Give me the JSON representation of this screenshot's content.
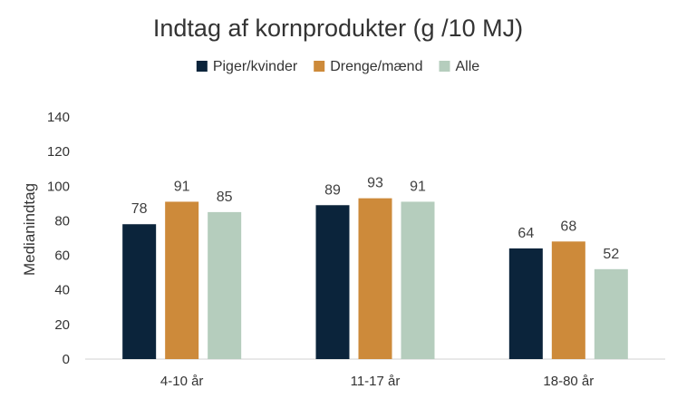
{
  "chart_data": {
    "type": "bar",
    "title": "Indtag af kornprodukter (g /10 MJ)",
    "ylabel": "Medianindtag",
    "xlabel": "",
    "ylim": [
      0,
      140
    ],
    "yticks": [
      0,
      20,
      40,
      60,
      80,
      100,
      120,
      140
    ],
    "categories": [
      "4-10 år",
      "11-17 år",
      "18-80 år"
    ],
    "series": [
      {
        "name": "Piger/kvinder",
        "color": "#0b243b",
        "values": [
          78,
          89,
          64
        ]
      },
      {
        "name": "Drenge/mænd",
        "color": "#cd8a3a",
        "values": [
          91,
          93,
          68
        ]
      },
      {
        "name": "Alle",
        "color": "#b5cdbd",
        "values": [
          85,
          91,
          52
        ]
      }
    ],
    "legend_position": "top-center",
    "grid": false
  }
}
